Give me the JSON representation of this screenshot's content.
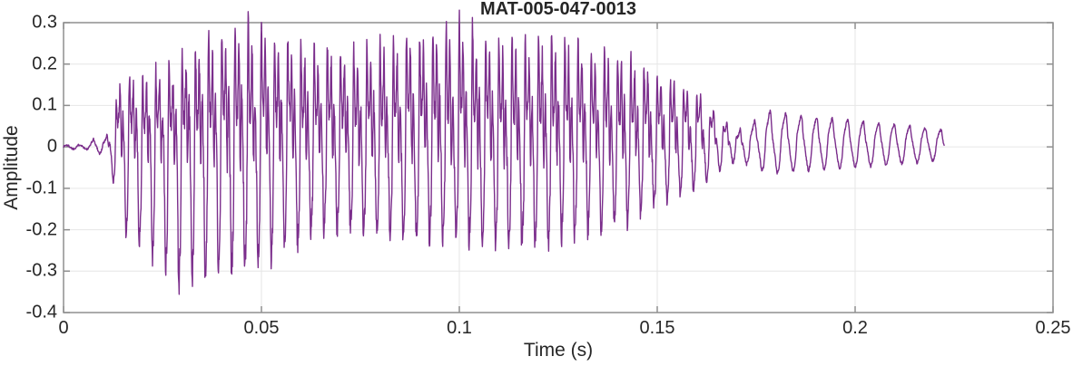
{
  "chart_data": {
    "type": "line",
    "subtype": "audio-waveform",
    "title": "MAT-005-047-0013",
    "xlabel": "Time (s)",
    "ylabel": "Amplitude",
    "xlim": [
      0,
      0.25
    ],
    "ylim": [
      -0.4,
      0.3
    ],
    "xtick_values": [
      0,
      0.05,
      0.1,
      0.15,
      0.2,
      0.25
    ],
    "xtick_labels": [
      "0",
      "0.05",
      "0.1",
      "0.15",
      "0.2",
      "0.25"
    ],
    "ytick_values": [
      -0.4,
      -0.3,
      -0.2,
      -0.1,
      0,
      0.1,
      0.2,
      0.3
    ],
    "ytick_labels": [
      "-0.4",
      "-0.3",
      "-0.2",
      "-0.1",
      "0",
      "0.1",
      "0.2",
      "0.3"
    ],
    "grid": true,
    "legend": null,
    "background_color": "#ffffff",
    "line_color": "#7B2E8C",
    "axis_color": "#8f8f8f",
    "grid_color": "#e6e6e6",
    "text_color": "#262626",
    "waveform": {
      "description": "speech-like burst: silence, voiced segment ~0.013-0.17 s peaking +0.305/-0.35, decaying sinusoidal tail ending ~0.2225 s",
      "f0_hz": 300,
      "tail_f0_hz": 255,
      "tail_start_s": 0.172,
      "t_start": 0.0,
      "t_end": 0.2225,
      "seed": 1337,
      "peak_positive": 0.305,
      "peak_negative": -0.35,
      "envelope_points": [
        [
          0.0,
          0.004,
          0.004,
          0.1
        ],
        [
          0.006,
          0.006,
          0.006,
          0.1
        ],
        [
          0.008,
          0.022,
          0.018,
          0.3
        ],
        [
          0.01,
          0.015,
          0.015,
          0.3
        ],
        [
          0.012,
          0.045,
          0.055,
          0.5
        ],
        [
          0.014,
          0.15,
          0.17,
          0.85
        ],
        [
          0.016,
          0.17,
          0.22,
          0.95
        ],
        [
          0.019,
          0.165,
          0.24,
          1.0
        ],
        [
          0.022,
          0.18,
          0.27,
          1.0
        ],
        [
          0.026,
          0.2,
          0.3,
          1.0
        ],
        [
          0.03,
          0.215,
          0.35,
          1.0
        ],
        [
          0.033,
          0.235,
          0.33,
          1.0
        ],
        [
          0.036,
          0.25,
          0.31,
          1.0
        ],
        [
          0.04,
          0.27,
          0.3,
          1.0
        ],
        [
          0.0445,
          0.3,
          0.31,
          1.0
        ],
        [
          0.048,
          0.29,
          0.29,
          1.0
        ],
        [
          0.053,
          0.27,
          0.26,
          1.0
        ],
        [
          0.058,
          0.245,
          0.24,
          1.0
        ],
        [
          0.065,
          0.235,
          0.205,
          1.0
        ],
        [
          0.072,
          0.24,
          0.2,
          1.0
        ],
        [
          0.08,
          0.25,
          0.21,
          1.0
        ],
        [
          0.088,
          0.265,
          0.22,
          1.0
        ],
        [
          0.094,
          0.285,
          0.225,
          1.0
        ],
        [
          0.1,
          0.305,
          0.22,
          1.0
        ],
        [
          0.106,
          0.27,
          0.225,
          1.0
        ],
        [
          0.112,
          0.26,
          0.235,
          1.0
        ],
        [
          0.118,
          0.26,
          0.24,
          1.0
        ],
        [
          0.124,
          0.26,
          0.235,
          1.0
        ],
        [
          0.13,
          0.25,
          0.215,
          1.0
        ],
        [
          0.136,
          0.24,
          0.2,
          1.0
        ],
        [
          0.142,
          0.225,
          0.18,
          1.0
        ],
        [
          0.148,
          0.185,
          0.15,
          0.9
        ],
        [
          0.154,
          0.15,
          0.12,
          0.8
        ],
        [
          0.16,
          0.13,
          0.1,
          0.7
        ],
        [
          0.165,
          0.08,
          0.065,
          0.5
        ],
        [
          0.17,
          0.038,
          0.032,
          0.4
        ],
        [
          0.174,
          0.06,
          0.048,
          0.28
        ],
        [
          0.178,
          0.088,
          0.065,
          0.22
        ],
        [
          0.184,
          0.08,
          0.06,
          0.2
        ],
        [
          0.192,
          0.07,
          0.054,
          0.18
        ],
        [
          0.2,
          0.063,
          0.049,
          0.17
        ],
        [
          0.208,
          0.056,
          0.044,
          0.16
        ],
        [
          0.216,
          0.048,
          0.038,
          0.15
        ],
        [
          0.2225,
          0.04,
          0.03,
          0.15
        ]
      ]
    }
  }
}
